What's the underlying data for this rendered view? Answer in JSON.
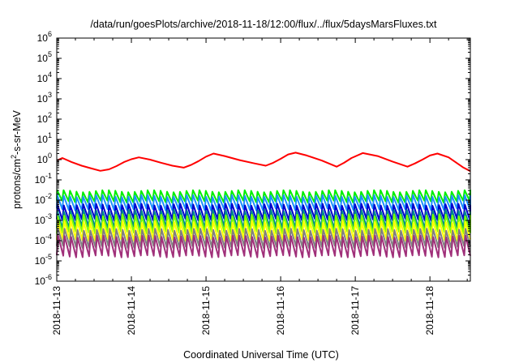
{
  "chart_data": {
    "type": "line",
    "title": "/data/run/goesPlots/archive/2018-11-18/12:00/flux/../flux/5daysMarsFluxes.txt",
    "xlabel": "Coordinated Universal Time (UTC)",
    "ylabel": {
      "prefix": "protons/cm",
      "sup": "2",
      "suffix": "-s-sr-MeV"
    },
    "y_scale": "log",
    "ylim_exp": [
      -6,
      6
    ],
    "y_ticks": [
      {
        "base": "10",
        "exp": "-6"
      },
      {
        "base": "10",
        "exp": "-5"
      },
      {
        "base": "10",
        "exp": "-4"
      },
      {
        "base": "10",
        "exp": "-3"
      },
      {
        "base": "10",
        "exp": "-2"
      },
      {
        "base": "10",
        "exp": "-1"
      },
      {
        "base": "10",
        "exp": "0"
      },
      {
        "base": "10",
        "exp": "1"
      },
      {
        "base": "10",
        "exp": "2"
      },
      {
        "base": "10",
        "exp": "3"
      },
      {
        "base": "10",
        "exp": "4"
      },
      {
        "base": "10",
        "exp": "5"
      },
      {
        "base": "10",
        "exp": "6"
      }
    ],
    "x_ticks": [
      "2018-11-13",
      "2018-11-14",
      "2018-11-15",
      "2018-11-16",
      "2018-11-17",
      "2018-11-18"
    ],
    "xlim": [
      "2018-11-13T00:00",
      "2018-11-18T13:00"
    ],
    "grid": false,
    "series": [
      {
        "color": "#ff0000",
        "points": [
          [
            "2018-11-13T00:00",
            0.9
          ],
          [
            "2018-11-13T01:48",
            1.2
          ],
          [
            "2018-11-13T04:48",
            0.75
          ],
          [
            "2018-11-13T08:00",
            0.5
          ],
          [
            "2018-11-13T10:48",
            0.38
          ],
          [
            "2018-11-13T14:00",
            0.28
          ],
          [
            "2018-11-13T16:48",
            0.33
          ],
          [
            "2018-11-13T19:12",
            0.48
          ],
          [
            "2018-11-13T21:36",
            0.75
          ],
          [
            "2018-11-14T00:00",
            1.05
          ],
          [
            "2018-11-14T02:24",
            1.3
          ],
          [
            "2018-11-14T06:00",
            1.0
          ],
          [
            "2018-11-14T09:36",
            0.7
          ],
          [
            "2018-11-14T13:12",
            0.5
          ],
          [
            "2018-11-14T16:48",
            0.4
          ],
          [
            "2018-11-14T19:12",
            0.55
          ],
          [
            "2018-11-14T21:36",
            0.85
          ],
          [
            "2018-11-15T00:00",
            1.4
          ],
          [
            "2018-11-15T02:24",
            2.0
          ],
          [
            "2018-11-15T06:00",
            1.5
          ],
          [
            "2018-11-15T10:48",
            0.95
          ],
          [
            "2018-11-15T15:36",
            0.65
          ],
          [
            "2018-11-15T19:12",
            0.5
          ],
          [
            "2018-11-15T21:36",
            0.7
          ],
          [
            "2018-11-16T00:00",
            1.1
          ],
          [
            "2018-11-16T02:24",
            1.8
          ],
          [
            "2018-11-16T04:48",
            2.2
          ],
          [
            "2018-11-16T08:24",
            1.6
          ],
          [
            "2018-11-16T13:12",
            0.9
          ],
          [
            "2018-11-16T18:00",
            0.45
          ],
          [
            "2018-11-16T20:24",
            0.7
          ],
          [
            "2018-11-16T22:48",
            1.2
          ],
          [
            "2018-11-17T02:24",
            2.1
          ],
          [
            "2018-11-17T07:12",
            1.5
          ],
          [
            "2018-11-17T12:00",
            0.8
          ],
          [
            "2018-11-17T16:48",
            0.45
          ],
          [
            "2018-11-17T19:12",
            0.65
          ],
          [
            "2018-11-17T21:36",
            1.0
          ],
          [
            "2018-11-18T00:00",
            1.6
          ],
          [
            "2018-11-18T02:24",
            2.0
          ],
          [
            "2018-11-18T06:00",
            1.3
          ],
          [
            "2018-11-18T10:48",
            0.4
          ],
          [
            "2018-11-18T13:00",
            0.27
          ]
        ]
      },
      {
        "color": "#00ee00",
        "high": 0.028,
        "low": 0.0085
      },
      {
        "color": "#1e90ff",
        "high": 0.016,
        "low": 0.0035
      },
      {
        "color": "#0000cd",
        "high": 0.006,
        "low": 0.0011
      },
      {
        "color": "#008b8b",
        "high": 0.003,
        "low": 0.00045
      },
      {
        "color": "#7fff00",
        "high": 0.0018,
        "low": 0.00025
      },
      {
        "color": "#ffff00",
        "high": 0.00085,
        "low": 0.00011
      },
      {
        "color": "#808080",
        "high": 0.00035,
        "low": 5e-05
      },
      {
        "color": "#a0307a",
        "high": 0.00016,
        "low": 1.7e-05
      }
    ]
  }
}
